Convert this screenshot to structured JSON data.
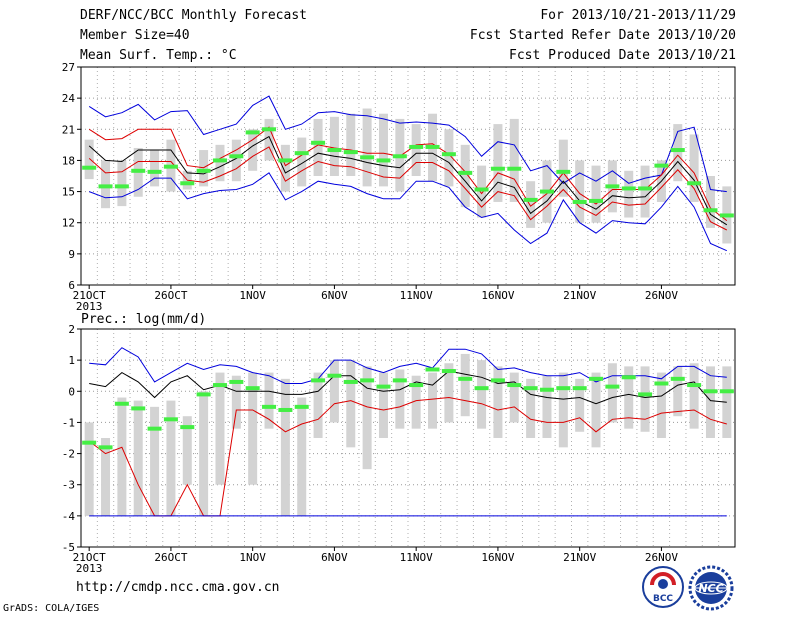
{
  "header": {
    "title": "DERF/NCC/BCC Monthly Forecast",
    "member_size": "Member Size=40",
    "variable": "Mean Surf. Temp.: °C",
    "period": "For 2013/10/21-2013/11/29",
    "start_date": "Fcst Started Refer Date 2013/10/20",
    "produced_date": "Fcst Produced Date 2013/10/21"
  },
  "footer": {
    "url": "http://cmdp.ncc.cma.gov.cn",
    "credit": "GrADS: COLA/IGES",
    "logo_bcc": "BCC",
    "logo_ncc": "NCC"
  },
  "colors": {
    "envelope": "#0000dd",
    "spread": "#dd0000",
    "ensemble_mean": "#000000",
    "box": "#d3d3d3",
    "marker": "#44ee44"
  },
  "chart_data": [
    {
      "type": "line",
      "title": "",
      "ylabel": "",
      "ylim": [
        6,
        27
      ],
      "yticks": [
        "6",
        "9",
        "12",
        "15",
        "18",
        "21",
        "24",
        "27"
      ],
      "xlabels": [
        "21OCT",
        "26OCT",
        "1NOV",
        "6NOV",
        "11NOV",
        "16NOV",
        "21NOV",
        "26NOV"
      ],
      "year_label": "2013",
      "grid": true,
      "x_days": 40,
      "series": [
        {
          "key": "max",
          "values": [
            23.2,
            22.2,
            22.6,
            23.4,
            21.9,
            22.7,
            22.8,
            20.5,
            21.0,
            21.5,
            23.3,
            24.2,
            21.0,
            21.5,
            22.6,
            22.7,
            22.4,
            22.3,
            22.0,
            21.6,
            21.7,
            21.6,
            21.4,
            20.3,
            18.4,
            19.8,
            19.5,
            17.0,
            17.5,
            15.8,
            16.8,
            16.0,
            17.0,
            15.8,
            16.3,
            16.6,
            20.8,
            21.2,
            15.2,
            15.0
          ]
        },
        {
          "key": "upper",
          "values": [
            21.0,
            20.0,
            20.1,
            21.0,
            21.0,
            21.0,
            17.5,
            17.3,
            18.2,
            19.0,
            20.0,
            21.2,
            17.5,
            18.5,
            19.5,
            19.2,
            19.0,
            18.7,
            18.7,
            18.4,
            19.5,
            19.6,
            18.6,
            16.9,
            14.8,
            16.8,
            16.2,
            13.6,
            14.8,
            16.8,
            14.8,
            13.8,
            15.2,
            15.2,
            15.2,
            16.6,
            18.5,
            16.8,
            13.4,
            12.2
          ]
        },
        {
          "key": "mean",
          "values": [
            19.4,
            18.0,
            17.9,
            19.0,
            19.0,
            19.0,
            16.8,
            16.7,
            17.4,
            18.2,
            19.4,
            20.3,
            16.8,
            17.7,
            18.7,
            18.4,
            18.2,
            17.8,
            17.5,
            17.3,
            18.7,
            18.7,
            17.8,
            16.0,
            14.1,
            15.9,
            15.4,
            12.9,
            14.1,
            16.0,
            14.1,
            13.3,
            14.6,
            14.4,
            14.5,
            16.0,
            17.9,
            16.1,
            12.8,
            11.8
          ]
        },
        {
          "key": "lower",
          "values": [
            18.2,
            16.8,
            16.9,
            17.9,
            17.9,
            17.9,
            16.1,
            15.9,
            16.5,
            17.2,
            18.4,
            19.3,
            16.0,
            17.0,
            17.9,
            17.5,
            17.4,
            16.9,
            16.4,
            16.3,
            17.8,
            17.8,
            17.0,
            15.3,
            13.5,
            15.0,
            14.6,
            12.3,
            13.6,
            15.2,
            13.5,
            12.7,
            14.0,
            13.7,
            13.8,
            15.4,
            17.1,
            15.3,
            12.1,
            11.3
          ]
        },
        {
          "key": "min",
          "values": [
            15.0,
            14.4,
            14.5,
            15.2,
            16.3,
            16.3,
            14.3,
            14.8,
            15.1,
            15.2,
            15.7,
            16.8,
            14.2,
            15.0,
            16.0,
            15.7,
            15.5,
            14.8,
            14.3,
            14.3,
            16.0,
            16.0,
            15.4,
            13.5,
            12.5,
            12.9,
            11.3,
            10.0,
            11.0,
            14.2,
            12.0,
            11.0,
            12.2,
            12.0,
            11.9,
            13.5,
            15.5,
            13.5,
            10.0,
            9.3
          ]
        }
      ],
      "boxes": [
        [
          16.2,
          20.0
        ],
        [
          13.4,
          18.0
        ],
        [
          13.6,
          18.0
        ],
        [
          14.5,
          19.2
        ],
        [
          15.5,
          19.0
        ],
        [
          15.0,
          20.0
        ],
        [
          15.2,
          17.0
        ],
        [
          15.5,
          19.0
        ],
        [
          16.0,
          19.5
        ],
        [
          16.0,
          20.0
        ],
        [
          17.0,
          21.0
        ],
        [
          18.0,
          22.0
        ],
        [
          15.0,
          19.5
        ],
        [
          15.5,
          20.2
        ],
        [
          16.5,
          22.0
        ],
        [
          16.5,
          22.2
        ],
        [
          16.5,
          22.5
        ],
        [
          15.5,
          23.0
        ],
        [
          15.5,
          22.5
        ],
        [
          15.0,
          22.0
        ],
        [
          16.5,
          21.5
        ],
        [
          16.0,
          22.5
        ],
        [
          15.5,
          21.0
        ],
        [
          13.5,
          19.5
        ],
        [
          12.5,
          17.5
        ],
        [
          14.0,
          21.5
        ],
        [
          14.0,
          22.0
        ],
        [
          11.5,
          16.0
        ],
        [
          12.0,
          18.0
        ],
        [
          14.5,
          20.0
        ],
        [
          12.0,
          18.0
        ],
        [
          12.0,
          17.5
        ],
        [
          13.0,
          18.0
        ],
        [
          12.5,
          17.0
        ],
        [
          12.5,
          17.5
        ],
        [
          14.0,
          18.0
        ],
        [
          16.0,
          21.5
        ],
        [
          14.0,
          20.5
        ],
        [
          11.5,
          16.5
        ],
        [
          10.0,
          15.5
        ]
      ],
      "markers": [
        17.3,
        15.5,
        15.5,
        17.0,
        16.9,
        17.4,
        15.8,
        17.0,
        18.0,
        18.4,
        20.7,
        21.0,
        18.0,
        18.7,
        19.7,
        19.0,
        18.8,
        18.3,
        18.0,
        18.4,
        19.3,
        19.3,
        18.6,
        16.8,
        15.2,
        17.2,
        17.2,
        14.2,
        15.0,
        16.9,
        14.0,
        14.1,
        15.5,
        15.3,
        15.3,
        17.5,
        19.0,
        15.8,
        13.2,
        12.7
      ]
    },
    {
      "type": "line",
      "title": "Prec.: log(mm/d)",
      "ylabel": "",
      "ylim": [
        -5,
        2
      ],
      "yticks": [
        "-5",
        "-4",
        "-3",
        "-2",
        "-1",
        "0",
        "1",
        "2"
      ],
      "xlabels": [
        "21OCT",
        "26OCT",
        "1NOV",
        "6NOV",
        "11NOV",
        "16NOV",
        "21NOV",
        "26NOV"
      ],
      "year_label": "2013",
      "grid": true,
      "x_days": 40,
      "series": [
        {
          "key": "max",
          "values": [
            0.9,
            0.85,
            1.4,
            1.1,
            0.3,
            0.6,
            0.9,
            0.7,
            0.85,
            0.8,
            0.6,
            0.5,
            0.25,
            0.25,
            0.4,
            1.0,
            1.0,
            0.75,
            0.6,
            0.8,
            0.9,
            0.75,
            1.35,
            1.35,
            1.2,
            0.7,
            0.75,
            0.6,
            0.5,
            0.5,
            0.6,
            0.3,
            0.5,
            0.5,
            0.5,
            0.4,
            0.8,
            0.8,
            0.5,
            0.45
          ]
        },
        {
          "key": "mean",
          "values": [
            0.25,
            0.15,
            0.6,
            0.3,
            -0.2,
            0.3,
            0.5,
            0.05,
            0.2,
            0.0,
            0.0,
            0.0,
            -0.1,
            -0.1,
            0.0,
            0.5,
            0.5,
            0.1,
            0.0,
            0.05,
            0.3,
            0.2,
            0.65,
            0.55,
            0.45,
            0.25,
            0.3,
            -0.1,
            -0.2,
            -0.25,
            -0.2,
            -0.4,
            -0.2,
            -0.1,
            -0.2,
            -0.15,
            0.2,
            0.3,
            -0.3,
            -0.35
          ]
        },
        {
          "key": "lower",
          "values": [
            -1.6,
            -2.0,
            -1.8,
            -3.0,
            -4.0,
            -4.0,
            -3.0,
            -4.0,
            -4.0,
            -0.6,
            -0.6,
            -0.9,
            -1.3,
            -1.05,
            -0.9,
            -0.4,
            -0.3,
            -0.5,
            -0.6,
            -0.5,
            -0.3,
            -0.25,
            -0.2,
            -0.3,
            -0.4,
            -0.6,
            -0.5,
            -0.9,
            -1.0,
            -1.0,
            -0.85,
            -1.3,
            -0.9,
            -0.85,
            -0.9,
            -0.7,
            -0.65,
            -0.6,
            -0.9,
            -1.05
          ]
        },
        {
          "key": "min",
          "values": [
            -4,
            -4,
            -4,
            -4,
            -4,
            -4,
            -4,
            -4,
            -4,
            -4,
            -4,
            -4,
            -4,
            -4,
            -4,
            -4,
            -4,
            -4,
            -4,
            -4,
            -4,
            -4,
            -4,
            -4,
            -4,
            -4,
            -4,
            -4,
            -4,
            -4,
            -4,
            -4,
            -4,
            -4,
            -4,
            -4,
            -4,
            -4,
            -4,
            -4
          ]
        }
      ],
      "boxes": [
        [
          -4.0,
          -1.0
        ],
        [
          -4.0,
          -1.5
        ],
        [
          -4.0,
          -0.2
        ],
        [
          -4.0,
          -0.3
        ],
        [
          -4.0,
          -0.5
        ],
        [
          -4.0,
          -0.3
        ],
        [
          -3.0,
          -0.8
        ],
        [
          -4.0,
          0.0
        ],
        [
          -3.0,
          0.6
        ],
        [
          -1.2,
          0.5
        ],
        [
          -3.0,
          0.6
        ],
        [
          -1.2,
          0.6
        ],
        [
          -4.0,
          0.4
        ],
        [
          -4.0,
          -0.2
        ],
        [
          -1.5,
          0.6
        ],
        [
          -1.0,
          1.0
        ],
        [
          -1.8,
          1.0
        ],
        [
          -2.5,
          0.8
        ],
        [
          -1.5,
          0.6
        ],
        [
          -1.2,
          0.7
        ],
        [
          -1.2,
          0.5
        ],
        [
          -1.2,
          0.6
        ],
        [
          -1.0,
          0.9
        ],
        [
          -0.8,
          1.2
        ],
        [
          -1.2,
          1.0
        ],
        [
          -1.5,
          0.8
        ],
        [
          -1.0,
          0.6
        ],
        [
          -1.5,
          0.4
        ],
        [
          -1.5,
          0.5
        ],
        [
          -1.8,
          0.6
        ],
        [
          -1.3,
          0.4
        ],
        [
          -1.8,
          0.6
        ],
        [
          -1.0,
          0.9
        ],
        [
          -1.2,
          0.8
        ],
        [
          -1.3,
          0.8
        ],
        [
          -1.5,
          0.6
        ],
        [
          -0.8,
          0.8
        ],
        [
          -1.2,
          0.9
        ],
        [
          -1.5,
          0.8
        ],
        [
          -1.5,
          0.8
        ]
      ],
      "markers": [
        -1.65,
        -1.8,
        -0.4,
        -0.55,
        -1.2,
        -0.9,
        -1.15,
        -0.1,
        0.2,
        0.3,
        0.1,
        -0.5,
        -0.6,
        -0.5,
        0.35,
        0.5,
        0.3,
        0.35,
        0.15,
        0.35,
        0.2,
        0.7,
        0.65,
        0.4,
        0.1,
        0.35,
        0.2,
        0.1,
        0.05,
        0.1,
        0.1,
        0.4,
        0.15,
        0.45,
        -0.1,
        0.25,
        0.4,
        0.2,
        0.0,
        0.0
      ]
    }
  ]
}
